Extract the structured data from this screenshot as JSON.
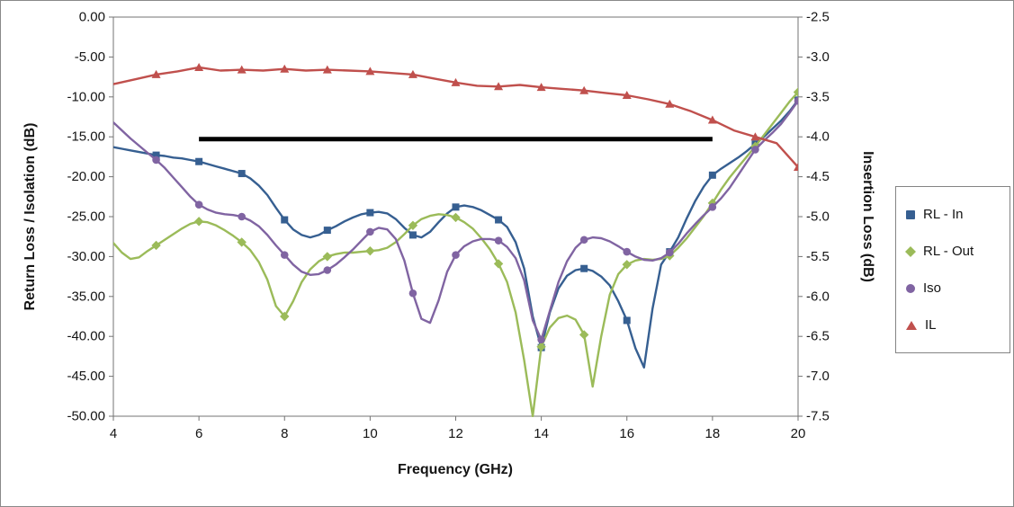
{
  "chart_data": {
    "type": "line",
    "title": "",
    "x_axis": {
      "label": "Frequency (GHz)",
      "min": 4,
      "max": 20,
      "ticks": [
        4,
        6,
        8,
        10,
        12,
        14,
        16,
        18,
        20
      ]
    },
    "y_axis_left": {
      "label": "Return Loss / Isolation (dB)",
      "min": -50,
      "max": 0,
      "ticks": [
        "0.00",
        "-5.00",
        "-10.00",
        "-15.00",
        "-20.00",
        "-25.00",
        "-30.00",
        "-35.00",
        "-40.00",
        "-45.00",
        "-50.00"
      ]
    },
    "y_axis_right": {
      "label": "Insertion Loss (dB)",
      "min": -7.5,
      "max": -2.5,
      "ticks": [
        "-2.5",
        "-3.0",
        "-3.5",
        "-4.0",
        "-4.5",
        "-5.0",
        "-5.5",
        "-6.0",
        "-6.5",
        "-7.0",
        "-7.5"
      ]
    },
    "grid": "off",
    "legend_position": "right",
    "spec_line": {
      "x1": 6,
      "x2": 18,
      "y": -15,
      "axis": "left",
      "color": "#000000",
      "width": 5
    },
    "series": [
      {
        "name": "RL - In",
        "color": "#365F91",
        "marker": "square",
        "axis": "left",
        "x_start": 4,
        "x_step": 0.2,
        "values": [
          -16.3,
          -16.5,
          -16.7,
          -16.9,
          -17.1,
          -17.3,
          -17.4,
          -17.6,
          -17.7,
          -17.9,
          -18.1,
          -18.4,
          -18.7,
          -19.0,
          -19.3,
          -19.6,
          -20.2,
          -21.1,
          -22.3,
          -23.9,
          -25.4,
          -26.6,
          -27.3,
          -27.6,
          -27.3,
          -26.7,
          -26.2,
          -25.6,
          -25.1,
          -24.7,
          -24.5,
          -24.4,
          -24.6,
          -25.3,
          -26.4,
          -27.3,
          -27.6,
          -26.9,
          -25.7,
          -24.6,
          -23.8,
          -23.6,
          -23.8,
          -24.2,
          -24.8,
          -25.4,
          -26.3,
          -28.2,
          -31.5,
          -37.5,
          -41.4,
          -37.0,
          -34.0,
          -32.4,
          -31.7,
          -31.5,
          -31.8,
          -32.5,
          -33.6,
          -35.6,
          -38.0,
          -41.5,
          -43.9,
          -36.5,
          -31.0,
          -29.4,
          -27.6,
          -25.2,
          -23.0,
          -21.2,
          -19.8,
          -19.0,
          -18.3,
          -17.6,
          -16.8,
          -15.9,
          -15.0,
          -14.0,
          -13.0,
          -11.8,
          -10.4
        ]
      },
      {
        "name": "RL - Out",
        "color": "#9BBB59",
        "marker": "diamond",
        "axis": "left",
        "x_start": 4,
        "x_step": 0.2,
        "values": [
          -28.3,
          -29.5,
          -30.3,
          -30.1,
          -29.3,
          -28.6,
          -27.9,
          -27.2,
          -26.5,
          -25.9,
          -25.6,
          -25.7,
          -26.1,
          -26.7,
          -27.4,
          -28.2,
          -29.2,
          -30.7,
          -32.9,
          -36.2,
          -37.5,
          -35.6,
          -33.2,
          -31.6,
          -30.6,
          -30.0,
          -29.7,
          -29.5,
          -29.5,
          -29.4,
          -29.3,
          -29.2,
          -28.9,
          -28.2,
          -27.2,
          -26.1,
          -25.3,
          -24.9,
          -24.7,
          -24.8,
          -25.1,
          -25.7,
          -26.5,
          -27.7,
          -29.1,
          -30.9,
          -33.2,
          -37.0,
          -43.0,
          -50.0,
          -41.3,
          -38.9,
          -37.7,
          -37.4,
          -37.9,
          -39.8,
          -46.3,
          -40.0,
          -34.8,
          -32.2,
          -31.0,
          -30.5,
          -30.3,
          -30.4,
          -30.3,
          -29.9,
          -28.9,
          -27.7,
          -26.3,
          -24.9,
          -23.3,
          -21.6,
          -20.1,
          -18.8,
          -17.5,
          -16.2,
          -14.8,
          -13.4,
          -12.0,
          -10.6,
          -9.4
        ]
      },
      {
        "name": "Iso",
        "color": "#8064A2",
        "marker": "circle",
        "axis": "left",
        "x_start": 4,
        "x_step": 0.2,
        "values": [
          -13.2,
          -14.2,
          -15.2,
          -16.1,
          -17.0,
          -17.9,
          -18.9,
          -20.1,
          -21.3,
          -22.5,
          -23.5,
          -24.1,
          -24.5,
          -24.7,
          -24.8,
          -25.0,
          -25.5,
          -26.2,
          -27.3,
          -28.6,
          -29.8,
          -31.0,
          -31.9,
          -32.3,
          -32.2,
          -31.7,
          -31.0,
          -30.1,
          -29.1,
          -28.0,
          -26.9,
          -26.4,
          -26.6,
          -27.8,
          -30.5,
          -34.6,
          -37.8,
          -38.3,
          -35.5,
          -31.9,
          -29.8,
          -28.7,
          -28.1,
          -27.8,
          -27.8,
          -28.0,
          -28.8,
          -30.2,
          -33.0,
          -38.0,
          -40.4,
          -36.8,
          -33.2,
          -30.6,
          -28.9,
          -27.9,
          -27.6,
          -27.7,
          -28.1,
          -28.7,
          -29.4,
          -30.0,
          -30.4,
          -30.5,
          -30.2,
          -29.5,
          -28.4,
          -27.1,
          -25.9,
          -24.8,
          -23.8,
          -22.7,
          -21.4,
          -19.8,
          -18.2,
          -16.6,
          -15.5,
          -14.5,
          -13.4,
          -12.0,
          -10.5
        ]
      },
      {
        "name": "IL",
        "color": "#C0504D",
        "marker": "triangle",
        "axis": "right",
        "x_start": 4,
        "x_step": 0.5,
        "values": [
          -3.34,
          -3.28,
          -3.22,
          -3.18,
          -3.13,
          -3.17,
          -3.16,
          -3.17,
          -3.15,
          -3.17,
          -3.16,
          -3.17,
          -3.18,
          -3.2,
          -3.22,
          -3.27,
          -3.32,
          -3.36,
          -3.37,
          -3.35,
          -3.38,
          -3.4,
          -3.42,
          -3.45,
          -3.48,
          -3.53,
          -3.59,
          -3.68,
          -3.79,
          -3.92,
          -4.0,
          -4.08,
          -4.38
        ]
      }
    ]
  },
  "colors": {
    "axis_line": "#737373",
    "tick_text": "#141414",
    "plot_bg": "#FFFFFF"
  }
}
